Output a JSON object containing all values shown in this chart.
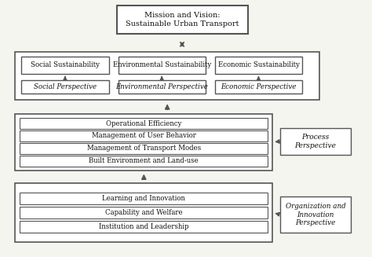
{
  "bg_color": "#f5f5f0",
  "box_color": "#ffffff",
  "border_color": "#555555",
  "text_color": "#111111",
  "title_box": "Mission and Vision:\nSustainable Urban Transport",
  "sustainability_boxes": [
    "Social Sustainability",
    "Environmental Sustainability",
    "Economic Sustainability"
  ],
  "perspective_boxes_top": [
    "Social Perspective",
    "Environmental Perspective",
    "Economic Perspective"
  ],
  "process_items": [
    "Built Environment and Land-use",
    "Management of Transport Modes",
    "Management of User Behavior",
    "Operational Efficiency"
  ],
  "process_label": "Process\nPerspective",
  "org_items": [
    "Institution and Leadership",
    "Capability and Welfare",
    "Learning and Innovation"
  ],
  "org_label": "Organization and\nInnovation\nPerspective"
}
